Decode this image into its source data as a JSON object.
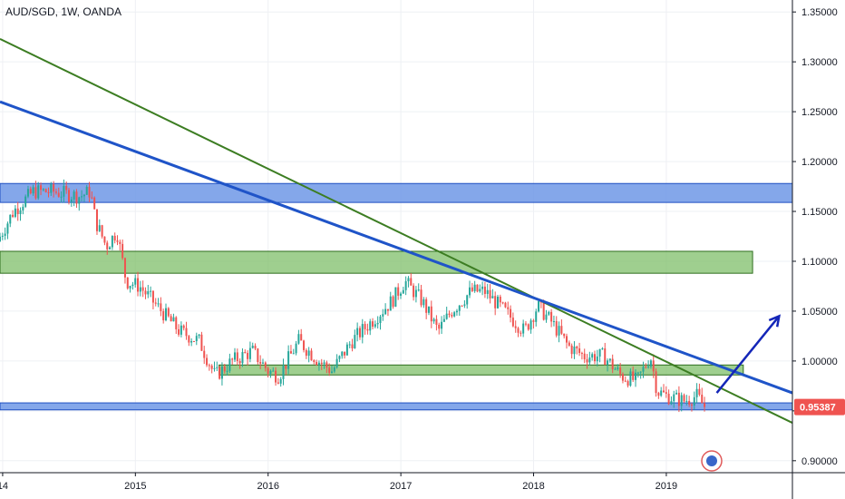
{
  "header": {
    "symbol_title": "AUD/SGD, 1W, OANDA"
  },
  "colors": {
    "up": "#26a69a",
    "down": "#ef5350",
    "blue_zone": "#6f98e6",
    "blue_zone_border": "#1e4fc2",
    "green_zone": "#7fbf6a",
    "green_zone_border": "#2e6e1e",
    "blue_line": "#1f54c8",
    "green_line": "#3c7d22",
    "arrow": "#1426b8",
    "price_tag": "#ef5350"
  },
  "chart_data": {
    "type": "candlestick",
    "title": "AUD/SGD, 1W, OANDA",
    "x_tick_labels": [
      "14",
      "2015",
      "2016",
      "2017",
      "2018",
      "2019"
    ],
    "y_tick_labels": [
      "1.35000",
      "1.30000",
      "1.25000",
      "1.20000",
      "1.15000",
      "1.10000",
      "1.05000",
      "1.00000",
      "0.95000",
      "0.90000"
    ],
    "y_ticks": [
      1.35,
      1.3,
      1.25,
      1.2,
      1.15,
      1.1,
      1.05,
      1.0,
      0.95,
      0.9
    ],
    "ylim": [
      0.888,
      1.362
    ],
    "xlim": [
      2013.98,
      2019.95
    ],
    "last_price": 0.95387,
    "last_price_label": "0.95387",
    "grid": true,
    "trend_anchors": [
      [
        2013.98,
        1.12
      ],
      [
        2014.1,
        1.15
      ],
      [
        2014.25,
        1.17
      ],
      [
        2014.4,
        1.17
      ],
      [
        2014.6,
        1.165
      ],
      [
        2014.68,
        1.17
      ],
      [
        2014.72,
        1.14
      ],
      [
        2014.8,
        1.115
      ],
      [
        2014.88,
        1.13
      ],
      [
        2014.95,
        1.08
      ],
      [
        2015.05,
        1.075
      ],
      [
        2015.15,
        1.06
      ],
      [
        2015.35,
        1.03
      ],
      [
        2015.5,
        1.02
      ],
      [
        2015.62,
        0.985
      ],
      [
        2015.75,
        1.0
      ],
      [
        2015.9,
        1.01
      ],
      [
        2016.02,
        0.99
      ],
      [
        2016.1,
        0.985
      ],
      [
        2016.25,
        1.02
      ],
      [
        2016.4,
        1.0
      ],
      [
        2016.5,
        0.99
      ],
      [
        2016.65,
        1.02
      ],
      [
        2016.8,
        1.04
      ],
      [
        2016.95,
        1.06
      ],
      [
        2017.05,
        1.08
      ],
      [
        2017.18,
        1.06
      ],
      [
        2017.3,
        1.03
      ],
      [
        2017.4,
        1.05
      ],
      [
        2017.55,
        1.07
      ],
      [
        2017.65,
        1.07
      ],
      [
        2017.8,
        1.05
      ],
      [
        2017.95,
        1.03
      ],
      [
        2018.05,
        1.055
      ],
      [
        2018.15,
        1.04
      ],
      [
        2018.28,
        1.015
      ],
      [
        2018.4,
        1.005
      ],
      [
        2018.55,
        1.005
      ],
      [
        2018.68,
        0.985
      ],
      [
        2018.8,
        0.98
      ],
      [
        2018.9,
        1.005
      ],
      [
        2018.95,
        0.97
      ],
      [
        2019.02,
        0.965
      ],
      [
        2019.15,
        0.96
      ],
      [
        2019.25,
        0.965
      ],
      [
        2019.3,
        0.955
      ]
    ],
    "zones": [
      {
        "color": "blue",
        "x0": 2013.98,
        "x1": 2019.95,
        "y0": 1.159,
        "y1": 1.178
      },
      {
        "color": "green",
        "x0": 2013.98,
        "x1": 2019.65,
        "y0": 1.088,
        "y1": 1.11
      },
      {
        "color": "green",
        "x0": 2015.63,
        "x1": 2019.58,
        "y0": 0.986,
        "y1": 0.996
      },
      {
        "color": "blue",
        "x0": 2013.98,
        "x1": 2019.95,
        "y0": 0.951,
        "y1": 0.958
      }
    ],
    "trendlines": [
      {
        "color": "green",
        "x0": 2013.98,
        "y0": 1.323,
        "x1": 2019.95,
        "y1": 0.938
      },
      {
        "color": "blue",
        "x0": 2013.98,
        "y0": 1.26,
        "x1": 2019.95,
        "y1": 0.968
      }
    ],
    "arrow": {
      "x0": 2019.38,
      "y0": 0.968,
      "x1": 2019.85,
      "y1": 1.045
    }
  }
}
